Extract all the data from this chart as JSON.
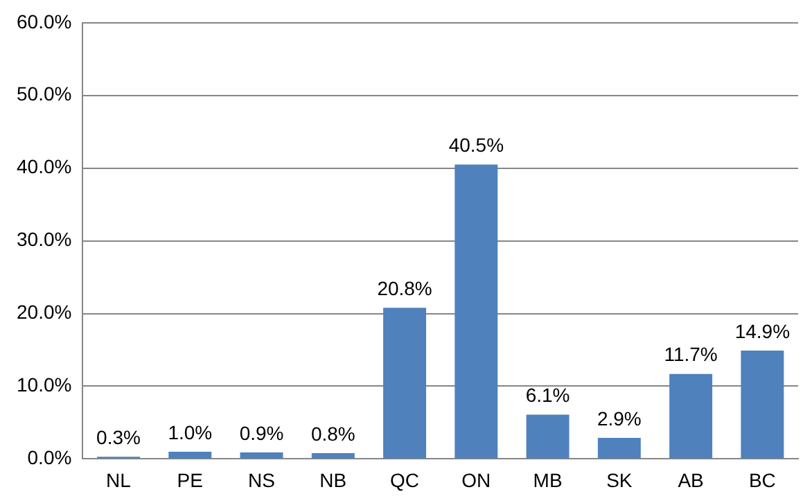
{
  "chart_data": {
    "type": "bar",
    "categories": [
      "NL",
      "PE",
      "NS",
      "NB",
      "QC",
      "ON",
      "MB",
      "SK",
      "AB",
      "BC"
    ],
    "values": [
      0.3,
      1.0,
      0.9,
      0.8,
      20.8,
      40.5,
      6.1,
      2.9,
      11.7,
      14.9
    ],
    "value_labels": [
      "0.3%",
      "1.0%",
      "0.9%",
      "0.8%",
      "20.8%",
      "40.5%",
      "6.1%",
      "2.9%",
      "11.7%",
      "14.9%"
    ],
    "color": "#4f81bd",
    "ylim": [
      0,
      60
    ],
    "yticks": [
      {
        "value": 0,
        "label": "0.0%"
      },
      {
        "value": 10,
        "label": "10.0%"
      },
      {
        "value": 20,
        "label": "20.0%"
      },
      {
        "value": 30,
        "label": "30.0%"
      },
      {
        "value": 40,
        "label": "40.0%"
      },
      {
        "value": 50,
        "label": "50.0%"
      },
      {
        "value": 60,
        "label": "60.0%"
      }
    ],
    "grid": "y"
  }
}
